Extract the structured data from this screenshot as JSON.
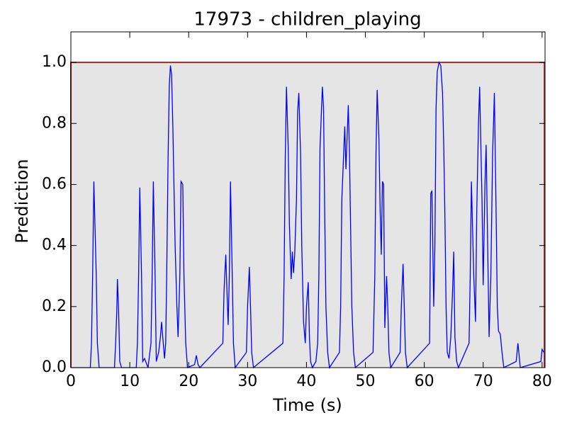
{
  "chart_data": {
    "type": "line",
    "title": "17973 - children_playing",
    "x_label": "Time (s)",
    "y_label": "Prediction",
    "xlim": [
      0,
      80.5
    ],
    "ylim": [
      0,
      1.1
    ],
    "xticks": [
      0,
      10,
      20,
      30,
      40,
      50,
      60,
      70,
      80
    ],
    "yticks": [
      {
        "value": 0,
        "label": "0.0"
      },
      {
        "value": 0.2,
        "label": "0.2"
      },
      {
        "value": 0.4,
        "label": "0.4"
      },
      {
        "value": 0.6,
        "label": "0.6"
      },
      {
        "value": 0.8,
        "label": "0.8"
      },
      {
        "value": 1,
        "label": "1.0"
      }
    ],
    "highlight": {
      "x": [
        0,
        0,
        80.4,
        80.4
      ],
      "values": [
        0,
        1,
        1,
        0
      ],
      "color": "#b22222",
      "fill": "#e5e5e5"
    },
    "series": [
      {
        "color": "#0000ff",
        "x": [
          0,
          3.3,
          3.5,
          3.7,
          3.9,
          4.3,
          4.5,
          4.8,
          7.4,
          7.6,
          7.8,
          7.9,
          8.1,
          8.3,
          8.6,
          11.1,
          11.3,
          11.5,
          11.7,
          12.0,
          12.2,
          12.5,
          12.9,
          13.1,
          13.6,
          13.8,
          14.0,
          14.3,
          14.5,
          14.9,
          15.2,
          15.4,
          15.6,
          15.9,
          16.1,
          16.3,
          16.5,
          16.7,
          16.9,
          17.1,
          17.3,
          17.5,
          17.7,
          18.0,
          18.2,
          18.5,
          18.7,
          19.0,
          19.2,
          19.5,
          19.8,
          21.0,
          21.3,
          21.6,
          21.9,
          25.8,
          26.0,
          26.3,
          26.5,
          26.7,
          26.9,
          27.1,
          27.4,
          27.6,
          27.9,
          29.8,
          30.0,
          30.3,
          30.5,
          30.7,
          31.0,
          36.0,
          36.2,
          36.4,
          36.6,
          36.9,
          37.1,
          37.4,
          37.6,
          37.8,
          38.0,
          38.3,
          38.5,
          38.7,
          39.0,
          39.2,
          39.5,
          39.8,
          40.0,
          40.3,
          40.5,
          40.7,
          41.0,
          41.6,
          41.9,
          42.1,
          42.3,
          42.7,
          42.9,
          43.1,
          43.3,
          43.6,
          43.9,
          45.6,
          45.8,
          46.0,
          46.5,
          46.7,
          47.1,
          47.3,
          47.5,
          47.7,
          48.0,
          48.3,
          51.3,
          51.6,
          51.8,
          52.0,
          52.3,
          52.5,
          52.7,
          52.9,
          53.1,
          53.3,
          53.6,
          53.8,
          54.0,
          54.3,
          55.9,
          56.1,
          56.4,
          56.6,
          56.8,
          57.1,
          60.9,
          61.1,
          61.3,
          61.6,
          61.8,
          62.0,
          62.2,
          62.5,
          62.8,
          63.1,
          63.3,
          63.5,
          63.7,
          63.9,
          64.2,
          64.5,
          64.8,
          65.0,
          65.2,
          65.5,
          65.8,
          67.6,
          67.8,
          68.0,
          68.4,
          68.7,
          68.9,
          69.2,
          69.4,
          69.8,
          70.0,
          70.3,
          70.5,
          70.8,
          71.0,
          71.3,
          71.6,
          71.9,
          72.2,
          72.4,
          72.6,
          72.9,
          73.2,
          73.5,
          75.6,
          75.9,
          76.1,
          76.3,
          79.8,
          80.0,
          80.3
        ],
        "values": [
          0,
          0,
          0.08,
          0.31,
          0.61,
          0.31,
          0.08,
          0,
          0,
          0.08,
          0.19,
          0.29,
          0.19,
          0.02,
          0,
          0,
          0.08,
          0.3,
          0.59,
          0.3,
          0.02,
          0.03,
          0.01,
          0,
          0.08,
          0.3,
          0.61,
          0.3,
          0.02,
          0.05,
          0.1,
          0.15,
          0.1,
          0.03,
          0.08,
          0.35,
          0.68,
          0.92,
          0.99,
          0.96,
          0.8,
          0.6,
          0.4,
          0.2,
          0.1,
          0.3,
          0.61,
          0.6,
          0.3,
          0.08,
          0,
          0.01,
          0.04,
          0.01,
          0,
          0.08,
          0.25,
          0.37,
          0.25,
          0.14,
          0.3,
          0.61,
          0.3,
          0.08,
          0,
          0.05,
          0.2,
          0.33,
          0.2,
          0.05,
          0,
          0.08,
          0.3,
          0.69,
          0.92,
          0.72,
          0.47,
          0.29,
          0.38,
          0.31,
          0.37,
          0.55,
          0.84,
          0.9,
          0.7,
          0.4,
          0.15,
          0.08,
          0.2,
          0.28,
          0.1,
          0.02,
          0,
          0.02,
          0.08,
          0.3,
          0.72,
          0.92,
          0.85,
          0.5,
          0.2,
          0.05,
          0,
          0.05,
          0.2,
          0.55,
          0.79,
          0.65,
          0.86,
          0.7,
          0.45,
          0.2,
          0.05,
          0,
          0.05,
          0.3,
          0.7,
          0.91,
          0.75,
          0.52,
          0.37,
          0.61,
          0.6,
          0.13,
          0.3,
          0.2,
          0.05,
          0,
          0.05,
          0.2,
          0.34,
          0.2,
          0.05,
          0,
          0.08,
          0.57,
          0.58,
          0.2,
          0.4,
          0.85,
          0.97,
          1.0,
          0.99,
          0.9,
          0.73,
          0.5,
          0.2,
          0.05,
          0.03,
          0.1,
          0.25,
          0.38,
          0.1,
          0.02,
          0,
          0.08,
          0.3,
          0.61,
          0.3,
          0.15,
          0.5,
          0.8,
          0.92,
          0.55,
          0.27,
          0.6,
          0.73,
          0.35,
          0.1,
          0.3,
          0.7,
          0.9,
          0.5,
          0.2,
          0.12,
          0.11,
          0.05,
          0,
          0.02,
          0.08,
          0.04,
          0,
          0.02,
          0.06,
          0.05
        ]
      }
    ]
  }
}
